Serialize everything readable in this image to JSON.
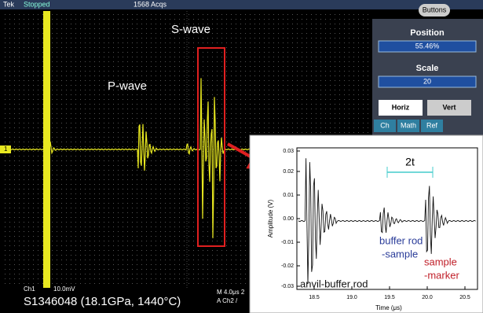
{
  "scope": {
    "status_bar": {
      "brand": "Tek",
      "state": "Stopped",
      "acquisitions": "1568 Acqs",
      "button": "Buttons"
    },
    "panel": {
      "position_label": "Position",
      "position_value": "55.46%",
      "scale_label": "Scale",
      "scale_value": "20",
      "tabs": [
        "Horiz",
        "Vert"
      ],
      "subtabs": [
        "Ch",
        "Math",
        "Ref"
      ]
    },
    "channel_marker": "1",
    "annotations": {
      "s_wave": "S-wave",
      "p_wave": "P-wave"
    },
    "footer": {
      "channel": "Ch1",
      "volts": "10.0mV",
      "timebase": "M 4.0μs 2",
      "trigger": "A Ch2 /",
      "sample": "S1346048 (18.1GPa, 1440°C)"
    }
  },
  "inset": {
    "y_axis_label": "Amplitude (V)",
    "x_axis_label": "Time (μs)",
    "yticks": [
      "0.03",
      "0.02",
      "0.01",
      "0.00",
      "-0.01",
      "-0.02",
      "-0.03"
    ],
    "xticks": [
      "18.5",
      "19.0",
      "19.5",
      "20.0",
      "20.5"
    ],
    "annotations": {
      "interval": "2t",
      "buffer_rod": [
        "buffer rod",
        "-sample"
      ],
      "sample": [
        "sample",
        "-marker"
      ],
      "anvil": "anvil-buffer rod"
    }
  }
}
